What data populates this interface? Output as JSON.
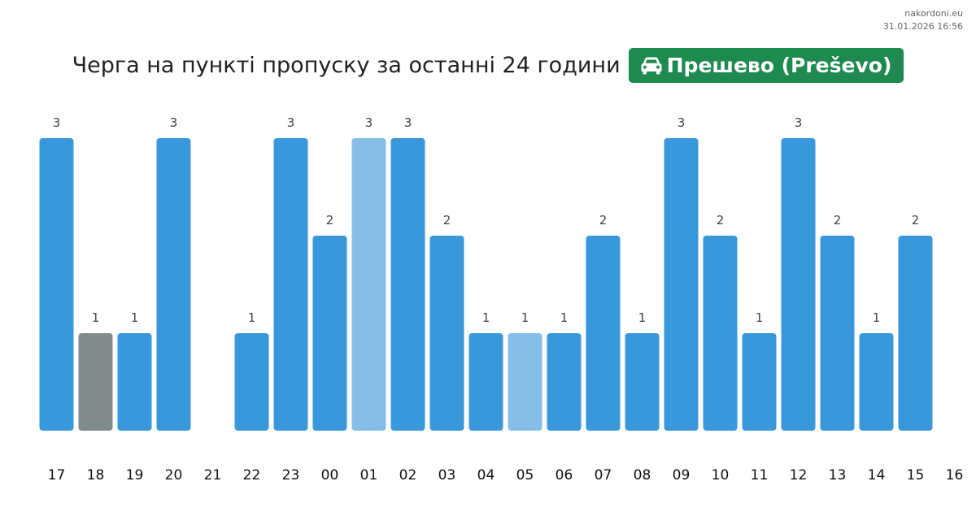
{
  "site": "nakordoni.eu",
  "timestamp": "31.01.2026 16:56",
  "title": "Черга на пункті пропуску за останні 24 години",
  "crossing": {
    "name": "Прешево (Preševo)",
    "icon": "car-icon",
    "color": "#1e8a50"
  },
  "colors": {
    "default": "#3898db",
    "light": "#85bfe8",
    "gray": "#7f8c8b"
  },
  "chart_data": {
    "type": "bar",
    "categories": [
      "17",
      "18",
      "19",
      "20",
      "21",
      "22",
      "23",
      "00",
      "01",
      "02",
      "03",
      "04",
      "05",
      "06",
      "07",
      "08",
      "09",
      "10",
      "11",
      "12",
      "13",
      "14",
      "15",
      "16"
    ],
    "values": [
      3,
      1,
      1,
      3,
      null,
      1,
      3,
      2,
      3,
      3,
      2,
      1,
      1,
      1,
      2,
      1,
      3,
      2,
      1,
      3,
      2,
      1,
      2,
      null
    ],
    "bar_styles": [
      "default",
      "gray",
      "default",
      "default",
      "default",
      "default",
      "default",
      "default",
      "light",
      "default",
      "default",
      "default",
      "light",
      "default",
      "default",
      "default",
      "default",
      "default",
      "default",
      "default",
      "default",
      "default",
      "default",
      "default"
    ],
    "data_labels": true,
    "ylim": [
      0,
      3
    ],
    "grid": false,
    "xlabel": "",
    "ylabel": ""
  }
}
